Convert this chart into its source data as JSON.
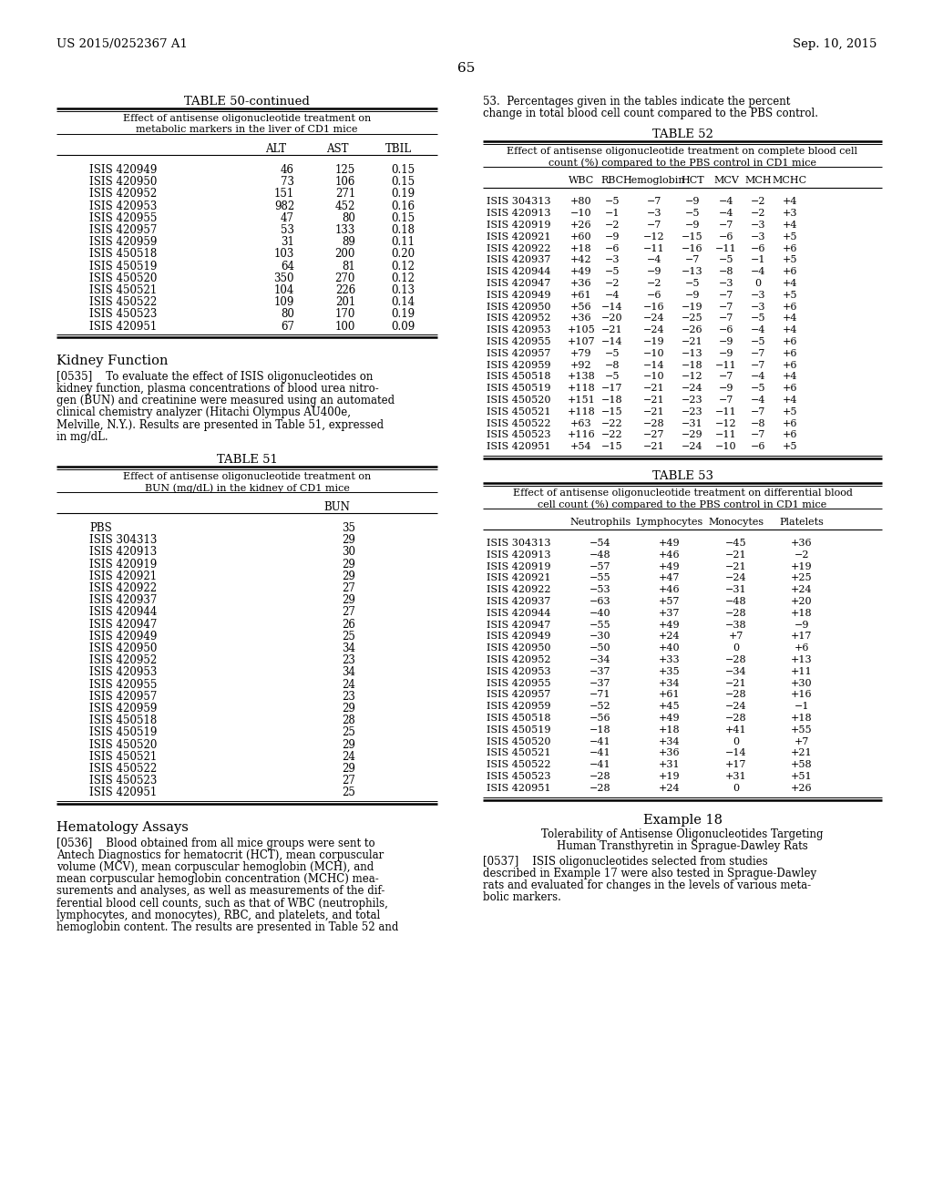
{
  "page_header_left": "US 2015/0252367 A1",
  "page_header_right": "Sep. 10, 2015",
  "page_number": "65",
  "table50_title": "TABLE 50-continued",
  "table50_subtitle1": "Effect of antisense oligonucleotide treatment on",
  "table50_subtitle2": "metabolic markers in the liver of CD1 mice",
  "table50_headers": [
    "ALT",
    "AST",
    "TBIL"
  ],
  "table50_rows": [
    [
      "ISIS 420949",
      "46",
      "125",
      "0.15"
    ],
    [
      "ISIS 420950",
      "73",
      "106",
      "0.15"
    ],
    [
      "ISIS 420952",
      "151",
      "271",
      "0.19"
    ],
    [
      "ISIS 420953",
      "982",
      "452",
      "0.16"
    ],
    [
      "ISIS 420955",
      "47",
      "80",
      "0.15"
    ],
    [
      "ISIS 420957",
      "53",
      "133",
      "0.18"
    ],
    [
      "ISIS 420959",
      "31",
      "89",
      "0.11"
    ],
    [
      "ISIS 450518",
      "103",
      "200",
      "0.20"
    ],
    [
      "ISIS 450519",
      "64",
      "81",
      "0.12"
    ],
    [
      "ISIS 450520",
      "350",
      "270",
      "0.12"
    ],
    [
      "ISIS 450521",
      "104",
      "226",
      "0.13"
    ],
    [
      "ISIS 450522",
      "109",
      "201",
      "0.14"
    ],
    [
      "ISIS 450523",
      "80",
      "170",
      "0.19"
    ],
    [
      "ISIS 420951",
      "67",
      "100",
      "0.09"
    ]
  ],
  "kidney_heading": "Kidney Function",
  "lines_0535": [
    "[0535]    To evaluate the effect of ISIS oligonucleotides on",
    "kidney function, plasma concentrations of blood urea nitro-",
    "gen (BUN) and creatinine were measured using an automated",
    "clinical chemistry analyzer (Hitachi Olympus AU400e,",
    "Melville, N.Y.). Results are presented in Table 51, expressed",
    "in mg/dL."
  ],
  "table51_title": "TABLE 51",
  "table51_subtitle1": "Effect of antisense oligonucleotide treatment on",
  "table51_subtitle2": "BUN (mg/dL) in the kidney of CD1 mice",
  "table51_header": "BUN",
  "table51_rows": [
    [
      "PBS",
      "35"
    ],
    [
      "ISIS 304313",
      "29"
    ],
    [
      "ISIS 420913",
      "30"
    ],
    [
      "ISIS 420919",
      "29"
    ],
    [
      "ISIS 420921",
      "29"
    ],
    [
      "ISIS 420922",
      "27"
    ],
    [
      "ISIS 420937",
      "29"
    ],
    [
      "ISIS 420944",
      "27"
    ],
    [
      "ISIS 420947",
      "26"
    ],
    [
      "ISIS 420949",
      "25"
    ],
    [
      "ISIS 420950",
      "34"
    ],
    [
      "ISIS 420952",
      "23"
    ],
    [
      "ISIS 420953",
      "34"
    ],
    [
      "ISIS 420955",
      "24"
    ],
    [
      "ISIS 420957",
      "23"
    ],
    [
      "ISIS 420959",
      "29"
    ],
    [
      "ISIS 450518",
      "28"
    ],
    [
      "ISIS 450519",
      "25"
    ],
    [
      "ISIS 450520",
      "29"
    ],
    [
      "ISIS 450521",
      "24"
    ],
    [
      "ISIS 450522",
      "29"
    ],
    [
      "ISIS 450523",
      "27"
    ],
    [
      "ISIS 420951",
      "25"
    ]
  ],
  "hematology_heading": "Hematology Assays",
  "lines_0536": [
    "[0536]    Blood obtained from all mice groups were sent to",
    "Antech Diagnostics for hematocrit (HCT), mean corpuscular",
    "volume (MCV), mean corpuscular hemoglobin (MCH), and",
    "mean corpuscular hemoglobin concentration (MCHC) mea-",
    "surements and analyses, as well as measurements of the dif-",
    "ferential blood cell counts, such as that of WBC (neutrophils,",
    "lymphocytes, and monocytes), RBC, and platelets, and total",
    "hemoglobin content. The results are presented in Table 52 and"
  ],
  "intro_right_lines": [
    "53.  Percentages given in the tables indicate the percent",
    "change in total blood cell count compared to the PBS control."
  ],
  "table52_title": "TABLE 52",
  "table52_subtitle1": "Effect of antisense oligonucleotide treatment on complete blood cell",
  "table52_subtitle2": "count (%) compared to the PBS control in CD1 mice",
  "table52_headers": [
    "WBC",
    "RBC",
    "Hemoglobin",
    "HCT",
    "MCV",
    "MCH",
    "MCHC"
  ],
  "table52_rows": [
    [
      "ISIS 304313",
      "+80",
      "−5",
      "−7",
      "−9",
      "−4",
      "−2",
      "+4"
    ],
    [
      "ISIS 420913",
      "−10",
      "−1",
      "−3",
      "−5",
      "−4",
      "−2",
      "+3"
    ],
    [
      "ISIS 420919",
      "+26",
      "−2",
      "−7",
      "−9",
      "−7",
      "−3",
      "+4"
    ],
    [
      "ISIS 420921",
      "+60",
      "−9",
      "−12",
      "−15",
      "−6",
      "−3",
      "+5"
    ],
    [
      "ISIS 420922",
      "+18",
      "−6",
      "−11",
      "−16",
      "−11",
      "−6",
      "+6"
    ],
    [
      "ISIS 420937",
      "+42",
      "−3",
      "−4",
      "−7",
      "−5",
      "−1",
      "+5"
    ],
    [
      "ISIS 420944",
      "+49",
      "−5",
      "−9",
      "−13",
      "−8",
      "−4",
      "+6"
    ],
    [
      "ISIS 420947",
      "+36",
      "−2",
      "−2",
      "−5",
      "−3",
      "0",
      "+4"
    ],
    [
      "ISIS 420949",
      "+61",
      "−4",
      "−6",
      "−9",
      "−7",
      "−3",
      "+5"
    ],
    [
      "ISIS 420950",
      "+56",
      "−14",
      "−16",
      "−19",
      "−7",
      "−3",
      "+6"
    ],
    [
      "ISIS 420952",
      "+36",
      "−20",
      "−24",
      "−25",
      "−7",
      "−5",
      "+4"
    ],
    [
      "ISIS 420953",
      "+105",
      "−21",
      "−24",
      "−26",
      "−6",
      "−4",
      "+4"
    ],
    [
      "ISIS 420955",
      "+107",
      "−14",
      "−19",
      "−21",
      "−9",
      "−5",
      "+6"
    ],
    [
      "ISIS 420957",
      "+79",
      "−5",
      "−10",
      "−13",
      "−9",
      "−7",
      "+6"
    ],
    [
      "ISIS 420959",
      "+92",
      "−8",
      "−14",
      "−18",
      "−11",
      "−7",
      "+6"
    ],
    [
      "ISIS 450518",
      "+138",
      "−5",
      "−10",
      "−12",
      "−7",
      "−4",
      "+4"
    ],
    [
      "ISIS 450519",
      "+118",
      "−17",
      "−21",
      "−24",
      "−9",
      "−5",
      "+6"
    ],
    [
      "ISIS 450520",
      "+151",
      "−18",
      "−21",
      "−23",
      "−7",
      "−4",
      "+4"
    ],
    [
      "ISIS 450521",
      "+118",
      "−15",
      "−21",
      "−23",
      "−11",
      "−7",
      "+5"
    ],
    [
      "ISIS 450522",
      "+63",
      "−22",
      "−28",
      "−31",
      "−12",
      "−8",
      "+6"
    ],
    [
      "ISIS 450523",
      "+116",
      "−22",
      "−27",
      "−29",
      "−11",
      "−7",
      "+6"
    ],
    [
      "ISIS 420951",
      "+54",
      "−15",
      "−21",
      "−24",
      "−10",
      "−6",
      "+5"
    ]
  ],
  "table53_title": "TABLE 53",
  "table53_subtitle1": "Effect of antisense oligonucleotide treatment on differential blood",
  "table53_subtitle2": "cell count (%) compared to the PBS control in CD1 mice",
  "table53_headers": [
    "Neutrophils",
    "Lymphocytes",
    "Monocytes",
    "Platelets"
  ],
  "table53_rows": [
    [
      "ISIS 304313",
      "−54",
      "+49",
      "−45",
      "+36"
    ],
    [
      "ISIS 420913",
      "−48",
      "+46",
      "−21",
      "−2"
    ],
    [
      "ISIS 420919",
      "−57",
      "+49",
      "−21",
      "+19"
    ],
    [
      "ISIS 420921",
      "−55",
      "+47",
      "−24",
      "+25"
    ],
    [
      "ISIS 420922",
      "−53",
      "+46",
      "−31",
      "+24"
    ],
    [
      "ISIS 420937",
      "−63",
      "+57",
      "−48",
      "+20"
    ],
    [
      "ISIS 420944",
      "−40",
      "+37",
      "−28",
      "+18"
    ],
    [
      "ISIS 420947",
      "−55",
      "+49",
      "−38",
      "−9"
    ],
    [
      "ISIS 420949",
      "−30",
      "+24",
      "+7",
      "+17"
    ],
    [
      "ISIS 420950",
      "−50",
      "+40",
      "0",
      "+6"
    ],
    [
      "ISIS 420952",
      "−34",
      "+33",
      "−28",
      "+13"
    ],
    [
      "ISIS 420953",
      "−37",
      "+35",
      "−34",
      "+11"
    ],
    [
      "ISIS 420955",
      "−37",
      "+34",
      "−21",
      "+30"
    ],
    [
      "ISIS 420957",
      "−71",
      "+61",
      "−28",
      "+16"
    ],
    [
      "ISIS 420959",
      "−52",
      "+45",
      "−24",
      "−1"
    ],
    [
      "ISIS 450518",
      "−56",
      "+49",
      "−28",
      "+18"
    ],
    [
      "ISIS 450519",
      "−18",
      "+18",
      "+41",
      "+55"
    ],
    [
      "ISIS 450520",
      "−41",
      "+34",
      "0",
      "+7"
    ],
    [
      "ISIS 450521",
      "−41",
      "+36",
      "−14",
      "+21"
    ],
    [
      "ISIS 450522",
      "−41",
      "+31",
      "+17",
      "+58"
    ],
    [
      "ISIS 450523",
      "−28",
      "+19",
      "+31",
      "+51"
    ],
    [
      "ISIS 420951",
      "−28",
      "+24",
      "0",
      "+26"
    ]
  ],
  "example18_heading": "Example 18",
  "example18_sub1": "Tolerability of Antisense Oligonucleotides Targeting",
  "example18_sub2": "Human Transthyretin in Sprague-Dawley Rats",
  "lines_0537": [
    "[0537]    ISIS oligonucleotides selected from studies",
    "described in Example 17 were also tested in Sprague-Dawley",
    "rats and evaluated for changes in the levels of various meta-",
    "bolic markers."
  ]
}
